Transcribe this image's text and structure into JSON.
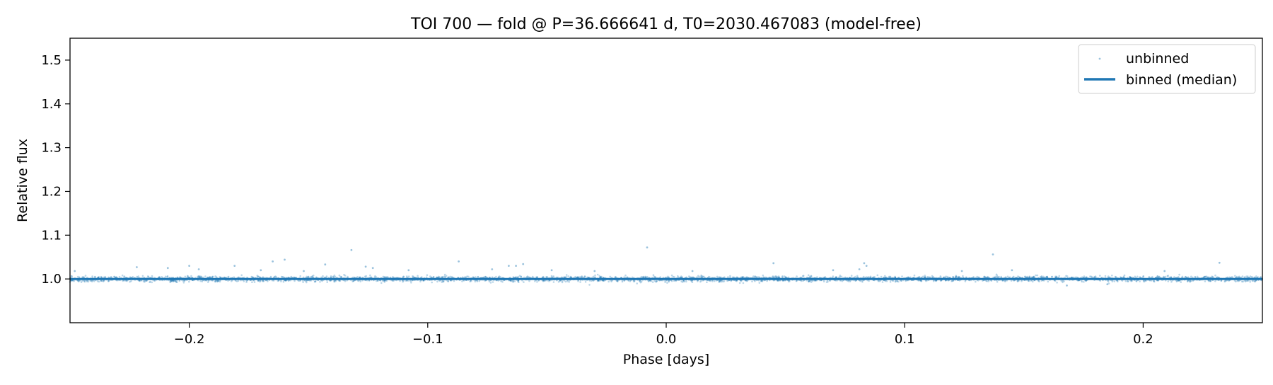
{
  "chart_data": {
    "type": "scatter",
    "title": "TOI 700 — fold @ P=36.666641 d, T0=2030.467083 (model-free)",
    "xlabel": "Phase [days]",
    "ylabel": "Relative flux",
    "xlim": [
      -0.25,
      0.25
    ],
    "ylim": [
      0.9,
      1.55
    ],
    "xticks": [
      -0.2,
      -0.1,
      0.0,
      0.1,
      0.2
    ],
    "xtick_labels": [
      "−0.2",
      "−0.1",
      "0.0",
      "0.1",
      "0.2"
    ],
    "yticks": [
      1.0,
      1.1,
      1.2,
      1.3,
      1.4,
      1.5
    ],
    "ytick_labels": [
      "1.0",
      "1.1",
      "1.2",
      "1.3",
      "1.4",
      "1.5"
    ],
    "grid": false,
    "legend_position": "top-right",
    "series": [
      {
        "name": "unbinned",
        "kind": "scatter",
        "color": "#1f77b4",
        "baseline": 1.0,
        "scatter_sd": 0.003,
        "n_points": 4000,
        "outliers": [
          {
            "x": -0.248,
            "y": 1.018
          },
          {
            "x": -0.222,
            "y": 1.027
          },
          {
            "x": -0.209,
            "y": 1.025
          },
          {
            "x": -0.2,
            "y": 1.03
          },
          {
            "x": -0.196,
            "y": 1.022
          },
          {
            "x": -0.181,
            "y": 1.03
          },
          {
            "x": -0.17,
            "y": 1.02
          },
          {
            "x": -0.165,
            "y": 1.04
          },
          {
            "x": -0.16,
            "y": 1.044
          },
          {
            "x": -0.152,
            "y": 1.018
          },
          {
            "x": -0.143,
            "y": 1.033
          },
          {
            "x": -0.132,
            "y": 1.066
          },
          {
            "x": -0.126,
            "y": 1.028
          },
          {
            "x": -0.123,
            "y": 1.025
          },
          {
            "x": -0.108,
            "y": 1.02
          },
          {
            "x": -0.087,
            "y": 1.04
          },
          {
            "x": -0.073,
            "y": 1.022
          },
          {
            "x": -0.066,
            "y": 1.03
          },
          {
            "x": -0.063,
            "y": 1.03
          },
          {
            "x": -0.06,
            "y": 1.034
          },
          {
            "x": -0.048,
            "y": 1.02
          },
          {
            "x": -0.03,
            "y": 1.018
          },
          {
            "x": -0.008,
            "y": 1.072
          },
          {
            "x": 0.011,
            "y": 1.018
          },
          {
            "x": 0.045,
            "y": 1.036
          },
          {
            "x": 0.07,
            "y": 1.02
          },
          {
            "x": 0.081,
            "y": 1.022
          },
          {
            "x": 0.083,
            "y": 1.036
          },
          {
            "x": 0.084,
            "y": 1.03
          },
          {
            "x": 0.124,
            "y": 1.018
          },
          {
            "x": 0.137,
            "y": 1.056
          },
          {
            "x": 0.145,
            "y": 1.02
          },
          {
            "x": 0.168,
            "y": 0.985
          },
          {
            "x": 0.185,
            "y": 0.988
          },
          {
            "x": 0.209,
            "y": 1.018
          },
          {
            "x": 0.232,
            "y": 1.037
          }
        ]
      },
      {
        "name": "binned (median)",
        "kind": "line",
        "color": "#1f77b4",
        "x": [
          -0.25,
          -0.2,
          -0.15,
          -0.1,
          -0.05,
          0.0,
          0.05,
          0.1,
          0.15,
          0.2,
          0.25
        ],
        "y": [
          1.0,
          1.0,
          1.0,
          1.0,
          1.0,
          1.0,
          1.0,
          1.0,
          1.0,
          1.0,
          1.0
        ]
      }
    ]
  }
}
